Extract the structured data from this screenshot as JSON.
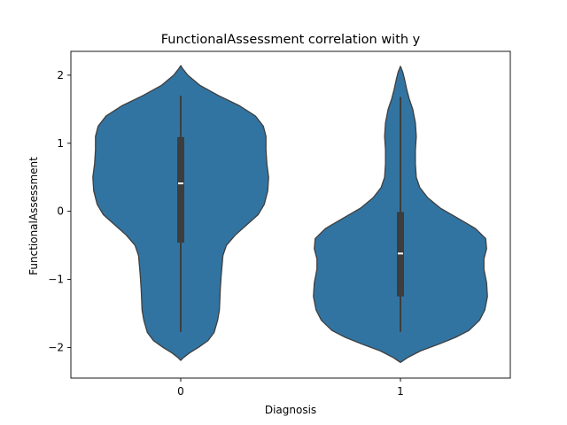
{
  "chart_data": {
    "type": "violin",
    "title": "FunctionalAssessment correlation with y",
    "xlabel": "Diagnosis",
    "ylabel": "FunctionalAssessment",
    "categories": [
      "0",
      "1"
    ],
    "ylim": [
      -2.45,
      2.35
    ],
    "yticks": [
      {
        "value": 2,
        "label": "2"
      },
      {
        "value": 1,
        "label": "1"
      },
      {
        "value": 0,
        "label": "0"
      },
      {
        "value": -1,
        "label": "−1"
      },
      {
        "value": -2,
        "label": "−2"
      }
    ],
    "grid": false,
    "colors": {
      "fill": "#3274a1",
      "edge": "#3f3f3f",
      "box": "#3d3d3d",
      "median": "#ffffff"
    },
    "violins": [
      {
        "category": "0",
        "median": 0.41,
        "q1": -0.46,
        "q3": 1.09,
        "whisker_low": -1.77,
        "whisker_high": 1.7,
        "density": [
          [
            -2.19,
            0.0
          ],
          [
            -2.15,
            0.03
          ],
          [
            -2.08,
            0.1
          ],
          [
            -2.0,
            0.2
          ],
          [
            -1.9,
            0.31
          ],
          [
            -1.78,
            0.38
          ],
          [
            -1.6,
            0.42
          ],
          [
            -1.45,
            0.44
          ],
          [
            -1.3,
            0.445
          ],
          [
            -1.15,
            0.45
          ],
          [
            -0.95,
            0.46
          ],
          [
            -0.8,
            0.47
          ],
          [
            -0.65,
            0.48
          ],
          [
            -0.5,
            0.52
          ],
          [
            -0.35,
            0.62
          ],
          [
            -0.2,
            0.75
          ],
          [
            -0.05,
            0.88
          ],
          [
            0.1,
            0.95
          ],
          [
            0.3,
            0.99
          ],
          [
            0.5,
            1.0
          ],
          [
            0.7,
            0.98
          ],
          [
            0.9,
            0.97
          ],
          [
            1.1,
            0.97
          ],
          [
            1.25,
            0.94
          ],
          [
            1.4,
            0.85
          ],
          [
            1.55,
            0.67
          ],
          [
            1.7,
            0.43
          ],
          [
            1.85,
            0.22
          ],
          [
            2.0,
            0.08
          ],
          [
            2.1,
            0.02
          ],
          [
            2.14,
            0.0
          ]
        ]
      },
      {
        "category": "1",
        "median": -0.62,
        "q1": -1.25,
        "q3": -0.01,
        "whisker_low": -1.77,
        "whisker_high": 1.68,
        "density": [
          [
            -2.22,
            0.0
          ],
          [
            -2.15,
            0.08
          ],
          [
            -2.05,
            0.23
          ],
          [
            -1.95,
            0.44
          ],
          [
            -1.85,
            0.63
          ],
          [
            -1.75,
            0.78
          ],
          [
            -1.6,
            0.9
          ],
          [
            -1.45,
            0.96
          ],
          [
            -1.25,
            0.99
          ],
          [
            -1.05,
            0.98
          ],
          [
            -0.85,
            0.95
          ],
          [
            -0.7,
            0.95
          ],
          [
            -0.55,
            0.98
          ],
          [
            -0.4,
            0.97
          ],
          [
            -0.25,
            0.85
          ],
          [
            -0.1,
            0.65
          ],
          [
            0.05,
            0.45
          ],
          [
            0.2,
            0.31
          ],
          [
            0.35,
            0.22
          ],
          [
            0.5,
            0.18
          ],
          [
            0.7,
            0.17
          ],
          [
            0.9,
            0.17
          ],
          [
            1.1,
            0.18
          ],
          [
            1.3,
            0.17
          ],
          [
            1.5,
            0.14
          ],
          [
            1.65,
            0.1
          ],
          [
            1.8,
            0.07
          ],
          [
            1.95,
            0.045
          ],
          [
            2.05,
            0.025
          ],
          [
            2.13,
            0.0
          ]
        ]
      }
    ]
  }
}
